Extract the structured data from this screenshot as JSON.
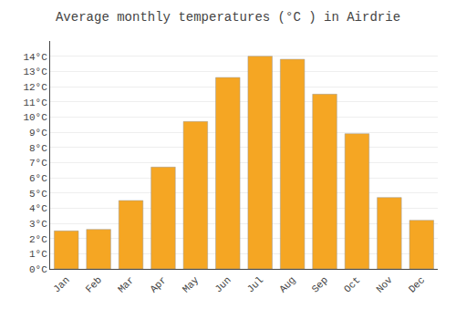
{
  "chart_data": {
    "type": "bar",
    "title": "Average monthly temperatures (°C ) in Airdrie",
    "categories": [
      "Jan",
      "Feb",
      "Mar",
      "Apr",
      "May",
      "Jun",
      "Jul",
      "Aug",
      "Sep",
      "Oct",
      "Nov",
      "Dec"
    ],
    "values": [
      2.5,
      2.6,
      4.5,
      6.7,
      9.7,
      12.6,
      14.0,
      13.8,
      11.5,
      8.9,
      4.7,
      3.2
    ],
    "color": "#F5A623",
    "ylim": [
      0,
      15
    ],
    "yticks": [
      {
        "value": 0,
        "label": "0°C"
      },
      {
        "value": 1,
        "label": "1°C"
      },
      {
        "value": 2,
        "label": "2°C"
      },
      {
        "value": 3,
        "label": "3°C"
      },
      {
        "value": 4,
        "label": "4°C"
      },
      {
        "value": 5,
        "label": "5°C"
      },
      {
        "value": 6,
        "label": "6°C"
      },
      {
        "value": 7,
        "label": "7°C"
      },
      {
        "value": 8,
        "label": "8°C"
      },
      {
        "value": 9,
        "label": "9°C"
      },
      {
        "value": 10,
        "label": "10°C"
      },
      {
        "value": 11,
        "label": "11°C"
      },
      {
        "value": 12,
        "label": "12°C"
      },
      {
        "value": 13,
        "label": "13°C"
      },
      {
        "value": 14,
        "label": "14°C"
      }
    ],
    "grid": true
  }
}
